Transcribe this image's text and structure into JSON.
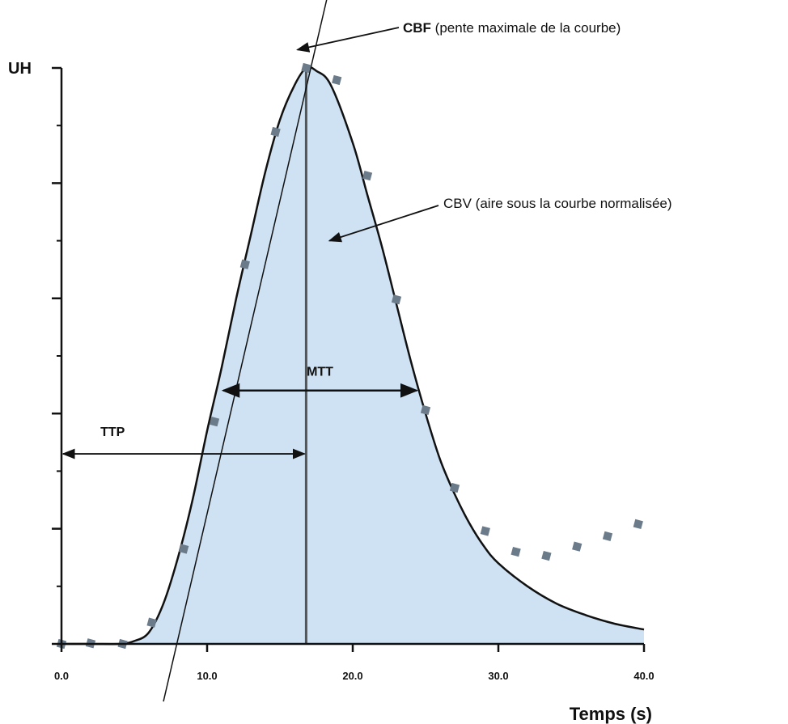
{
  "chart_data": {
    "type": "area",
    "title": "",
    "xlabel": "Temps (s)",
    "ylabel": "UH",
    "xlim": [
      0,
      40
    ],
    "ylim": [
      0,
      100
    ],
    "x_ticks": [
      "0.0",
      "10.0",
      "20.0",
      "30.0",
      "40.0"
    ],
    "grid": false,
    "series": [
      {
        "kind": "fitted-curve",
        "x": [
          0,
          2,
          4,
          5,
          6,
          7,
          8,
          9,
          10,
          11,
          12,
          13,
          14,
          15,
          16,
          16.8,
          17.5,
          18.5,
          20,
          21,
          22,
          23,
          24,
          25,
          26,
          27,
          28,
          29,
          30,
          32,
          34,
          36,
          38,
          40
        ],
        "values": [
          0,
          0,
          0,
          0.5,
          2,
          7,
          15,
          25,
          37,
          48,
          60,
          71,
          82,
          91,
          97,
          100,
          99.5,
          97,
          87,
          78,
          69,
          59,
          49,
          40,
          32,
          26,
          21,
          17,
          14,
          10,
          7,
          5,
          3.5,
          2.5
        ]
      },
      {
        "kind": "samples",
        "x": [
          0,
          2,
          4.2,
          6.2,
          8.4,
          10.5,
          12.6,
          14.7,
          16.8,
          18.9,
          21,
          23,
          25,
          27,
          29.1,
          31.2,
          33.3,
          35.4,
          37.5,
          39.6
        ],
        "values": [
          0,
          0.1,
          0,
          3.7,
          16.5,
          38.6,
          65.9,
          88.9,
          100,
          97.9,
          81.3,
          59.8,
          40.6,
          27.1,
          19.6,
          16,
          15.3,
          16.9,
          18.7,
          20.8
        ]
      }
    ],
    "slope_line": {
      "x": [
        7,
        16.8,
        18.5
      ],
      "values": [
        -10,
        100,
        115
      ]
    },
    "peak_x": 16.8,
    "measures": {
      "ttp": {
        "label": "TTP",
        "x_start": 0,
        "x_end": 16.8,
        "y": 33
      },
      "mtt": {
        "label": "MTT",
        "x_start": 11,
        "x_end": 24.5,
        "y": 44
      }
    },
    "annotations": {
      "cbf": {
        "bold": "CBF",
        "rest": " (pente maximale de la courbe)",
        "target_x": 16.2,
        "target_y": 104
      },
      "cbv": {
        "text": "CBV (aire sous la courbe normalisée)",
        "target_x": 18.4,
        "target_y": 70
      }
    },
    "colors": {
      "fill": "#cfe2f3",
      "curve": "#111111",
      "markers": "#6b7b8a",
      "axis": "#111111"
    }
  }
}
